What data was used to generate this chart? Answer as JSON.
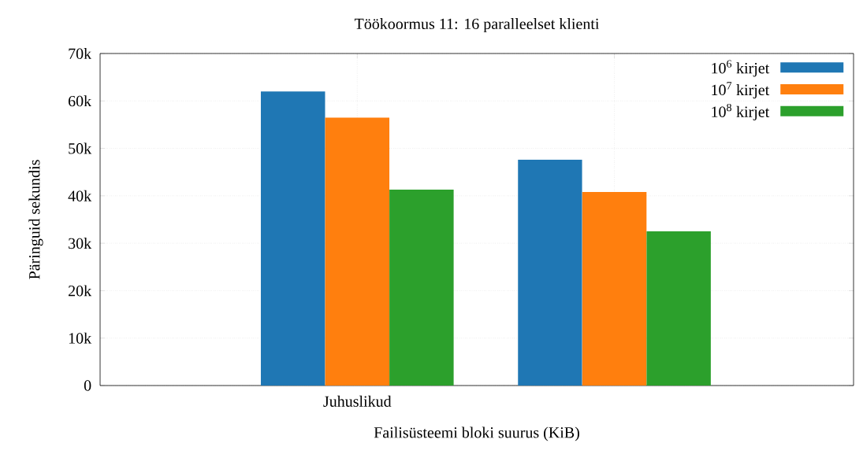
{
  "chart_data": {
    "type": "bar",
    "title": "Töökoormus 11: 16 paralleelset klienti",
    "xlabel": "Failisüsteemi bloki suurus (KiB)",
    "ylabel": "Päringuid sekundis",
    "categories": [
      "Juhuslikud",
      null
    ],
    "series": [
      {
        "name": "10$^{6}$ kirjet",
        "color": "#1f77b4",
        "values": [
          62000,
          47600
        ]
      },
      {
        "name": "10$^{7}$ kirjet",
        "color": "#ff7f0e",
        "values": [
          56500,
          40800
        ]
      },
      {
        "name": "10$^{8}$ kirjet",
        "color": "#2ca02c",
        "values": [
          41300,
          32500
        ]
      }
    ],
    "ylim": [
      0,
      70000
    ],
    "yticks": [
      0,
      {
        "value": 10000,
        "label": "10k"
      },
      {
        "value": 20000,
        "label": "20k"
      },
      {
        "value": 30000,
        "label": "30k"
      },
      {
        "value": 40000,
        "label": "40k"
      },
      {
        "value": 50000,
        "label": "50k"
      },
      {
        "value": 60000,
        "label": "60k"
      },
      {
        "value": 70000,
        "label": "70k"
      }
    ],
    "grid": true,
    "legend": "top right"
  }
}
